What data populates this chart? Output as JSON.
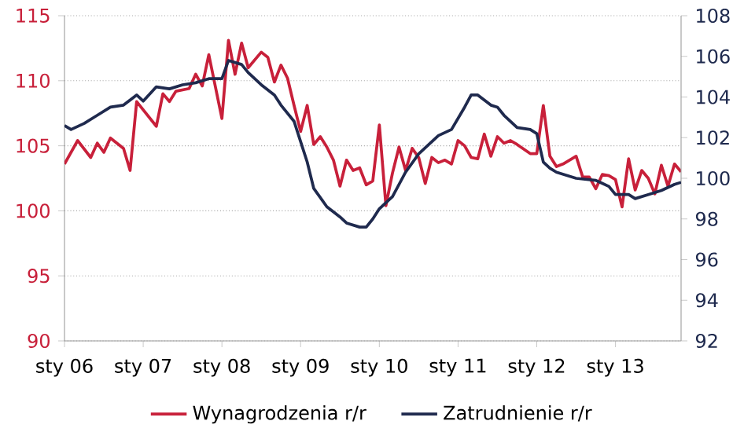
{
  "chart_data": {
    "type": "line",
    "grid": "y",
    "legend": "bottom",
    "xlim": [
      "2006-01",
      "2013-11"
    ],
    "xticks": [
      {
        "value": "2006-01",
        "label": "sty 06"
      },
      {
        "value": "2007-01",
        "label": "sty 07"
      },
      {
        "value": "2008-01",
        "label": "sty 08"
      },
      {
        "value": "2009-01",
        "label": "sty 09"
      },
      {
        "value": "2010-01",
        "label": "sty 10"
      },
      {
        "value": "2011-01",
        "label": "sty 11"
      },
      {
        "value": "2012-01",
        "label": "sty 12"
      },
      {
        "value": "2013-01",
        "label": "sty 13"
      }
    ],
    "ylim": [
      90,
      115
    ],
    "yticks": [
      90,
      95,
      100,
      105,
      110,
      115
    ],
    "y2lim": [
      92,
      108
    ],
    "y2ticks": [
      92,
      94,
      96,
      98,
      100,
      102,
      104,
      106,
      108
    ],
    "series": [
      {
        "name": "Wynagrodzenia r/r",
        "color": "#c8203a",
        "x": [
          "2006-01",
          "2006-03",
          "2006-05",
          "2006-06",
          "2006-07",
          "2006-08",
          "2006-10",
          "2006-11",
          "2006-12",
          "2007-03",
          "2007-04",
          "2007-05",
          "2007-06",
          "2007-08",
          "2007-09",
          "2007-10",
          "2007-11",
          "2008-01",
          "2008-02",
          "2008-03",
          "2008-04",
          "2008-05",
          "2008-07",
          "2008-08",
          "2008-09",
          "2008-10",
          "2008-11",
          "2008-12",
          "2009-01",
          "2009-02",
          "2009-03",
          "2009-04",
          "2009-05",
          "2009-06",
          "2009-07",
          "2009-08",
          "2009-09",
          "2009-10",
          "2009-11",
          "2009-12",
          "2010-01",
          "2010-02",
          "2010-03",
          "2010-04",
          "2010-05",
          "2010-06",
          "2010-07",
          "2010-08",
          "2010-09",
          "2010-10",
          "2010-11",
          "2010-12",
          "2011-01",
          "2011-02",
          "2011-03",
          "2011-04",
          "2011-05",
          "2011-06",
          "2011-07",
          "2011-08",
          "2011-09",
          "2011-10",
          "2011-12",
          "2012-01",
          "2012-02",
          "2012-03",
          "2012-04",
          "2012-05",
          "2012-07",
          "2012-08",
          "2012-09",
          "2012-10",
          "2012-11",
          "2012-12",
          "2013-01",
          "2013-02",
          "2013-03",
          "2013-04",
          "2013-05",
          "2013-06",
          "2013-07",
          "2013-08",
          "2013-09",
          "2013-10",
          "2013-11"
        ],
        "values": [
          103.6,
          105.4,
          104.1,
          105.2,
          104.5,
          105.6,
          104.8,
          103.1,
          108.4,
          106.5,
          109.0,
          108.4,
          109.2,
          109.4,
          110.5,
          109.6,
          112.0,
          107.1,
          113.1,
          110.5,
          112.9,
          111.0,
          112.2,
          111.8,
          109.9,
          111.2,
          110.2,
          108.1,
          106.1,
          108.1,
          105.1,
          105.7,
          104.9,
          103.9,
          101.9,
          103.9,
          103.1,
          103.3,
          102.0,
          102.3,
          106.6,
          100.4,
          102.9,
          104.9,
          103.1,
          104.8,
          104.1,
          102.1,
          104.1,
          103.7,
          103.9,
          103.6,
          105.4,
          105.0,
          104.1,
          104.0,
          105.9,
          104.2,
          105.7,
          105.2,
          105.4,
          105.1,
          104.4,
          104.4,
          108.1,
          104.2,
          103.4,
          103.6,
          104.2,
          102.6,
          102.6,
          101.7,
          102.8,
          102.7,
          102.4,
          100.3,
          104.0,
          101.6,
          103.1,
          102.5,
          101.3,
          103.5,
          101.9,
          103.6,
          103.0
        ]
      },
      {
        "name": "Zatrudnienie  r/r",
        "color": "#1f2a4e",
        "axis": "y2",
        "x": [
          "2006-01",
          "2006-02",
          "2006-04",
          "2006-06",
          "2006-08",
          "2006-10",
          "2006-12",
          "2007-01",
          "2007-03",
          "2007-05",
          "2007-07",
          "2007-09",
          "2007-11",
          "2008-01",
          "2008-02",
          "2008-04",
          "2008-05",
          "2008-07",
          "2008-09",
          "2008-10",
          "2008-12",
          "2009-01",
          "2009-02",
          "2009-03",
          "2009-05",
          "2009-07",
          "2009-08",
          "2009-10",
          "2009-11",
          "2009-12",
          "2010-01",
          "2010-03",
          "2010-05",
          "2010-07",
          "2010-08",
          "2010-10",
          "2010-12",
          "2011-02",
          "2011-03",
          "2011-04",
          "2011-06",
          "2011-07",
          "2011-08",
          "2011-10",
          "2011-12",
          "2012-01",
          "2012-02",
          "2012-03",
          "2012-04",
          "2012-07",
          "2012-10",
          "2012-12",
          "2013-01",
          "2013-03",
          "2013-04",
          "2013-06",
          "2013-08",
          "2013-10",
          "2013-11"
        ],
        "values": [
          102.6,
          102.4,
          102.7,
          103.1,
          103.5,
          103.6,
          104.1,
          103.8,
          104.5,
          104.4,
          104.6,
          104.7,
          104.9,
          104.9,
          105.8,
          105.6,
          105.2,
          104.6,
          104.1,
          103.6,
          102.8,
          101.8,
          100.8,
          99.5,
          98.6,
          98.1,
          97.8,
          97.6,
          97.6,
          98.0,
          98.5,
          99.1,
          100.3,
          101.2,
          101.5,
          102.1,
          102.4,
          103.5,
          104.1,
          104.1,
          103.6,
          103.5,
          103.1,
          102.5,
          102.4,
          102.2,
          100.8,
          100.5,
          100.3,
          100.0,
          99.9,
          99.6,
          99.2,
          99.2,
          99.0,
          99.2,
          99.4,
          99.7,
          99.8
        ]
      }
    ]
  }
}
